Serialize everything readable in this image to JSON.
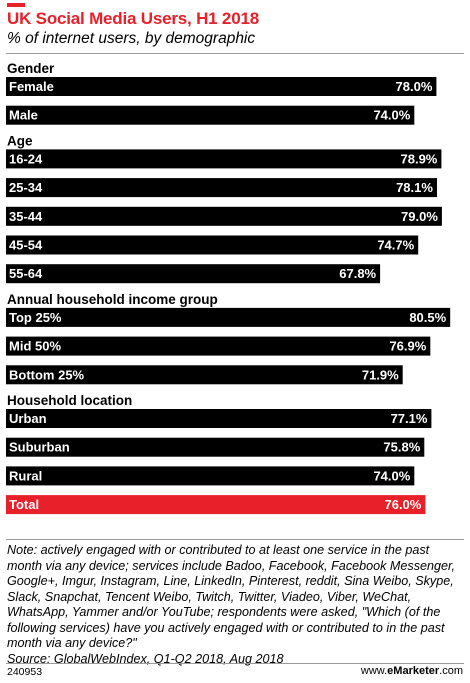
{
  "header": {
    "title": "UK Social Media Users, H1 2018",
    "subtitle": "% of internet users, by demographic"
  },
  "colors": {
    "bar": "#000000",
    "highlight": "#e8202a",
    "accent": "#e8202a"
  },
  "chart_data": {
    "type": "bar",
    "orientation": "horizontal",
    "title": "UK Social Media Users, H1 2018",
    "subtitle": "% of internet users, by demographic",
    "xlim": [
      0,
      83
    ],
    "unit": "%",
    "groups": [
      {
        "label": "Gender",
        "rows": [
          {
            "category": "Female",
            "value": 78.0,
            "value_label": "78.0%"
          },
          {
            "category": "Male",
            "value": 74.0,
            "value_label": "74.0%"
          }
        ]
      },
      {
        "label": "Age",
        "rows": [
          {
            "category": "16-24",
            "value": 78.9,
            "value_label": "78.9%"
          },
          {
            "category": "25-34",
            "value": 78.1,
            "value_label": "78.1%"
          },
          {
            "category": "35-44",
            "value": 79.0,
            "value_label": "79.0%"
          },
          {
            "category": "45-54",
            "value": 74.7,
            "value_label": "74.7%"
          },
          {
            "category": "55-64",
            "value": 67.8,
            "value_label": "67.8%"
          }
        ]
      },
      {
        "label": "Annual household income group",
        "rows": [
          {
            "category": "Top 25%",
            "value": 80.5,
            "value_label": "80.5%"
          },
          {
            "category": "Mid 50%",
            "value": 76.9,
            "value_label": "76.9%"
          },
          {
            "category": "Bottom 25%",
            "value": 71.9,
            "value_label": "71.9%"
          }
        ]
      },
      {
        "label": "Household location",
        "rows": [
          {
            "category": "Urban",
            "value": 77.1,
            "value_label": "77.1%"
          },
          {
            "category": "Suburban",
            "value": 75.8,
            "value_label": "75.8%"
          },
          {
            "category": "Rural",
            "value": 74.0,
            "value_label": "74.0%"
          }
        ]
      }
    ],
    "total": {
      "category": "Total",
      "value": 76.0,
      "value_label": "76.0%",
      "highlight": true
    }
  },
  "note": "Note: actively engaged with or contributed to at least one service in the past month via any device; services include Badoo, Facebook, Facebook Messenger, Google+, Imgur, Instagram, Line, LinkedIn, Pinterest, reddit, Sina Weibo, Skype, Slack, Snapchat, Tencent Weibo, Twitch, Twitter, Viadeo, Viber, WeChat, WhatsApp, Yammer and/or YouTube; respondents were asked, \"Which (of the following services) have you actively engaged with or contributed to in the past month via any device?\"",
  "source": "Source: GlobalWebIndex, Q1-Q2 2018, Aug 2018",
  "footer": {
    "chart_id": "240953",
    "brand_prefix": "www.",
    "brand_name": "eMarketer",
    "brand_suffix": ".com"
  }
}
